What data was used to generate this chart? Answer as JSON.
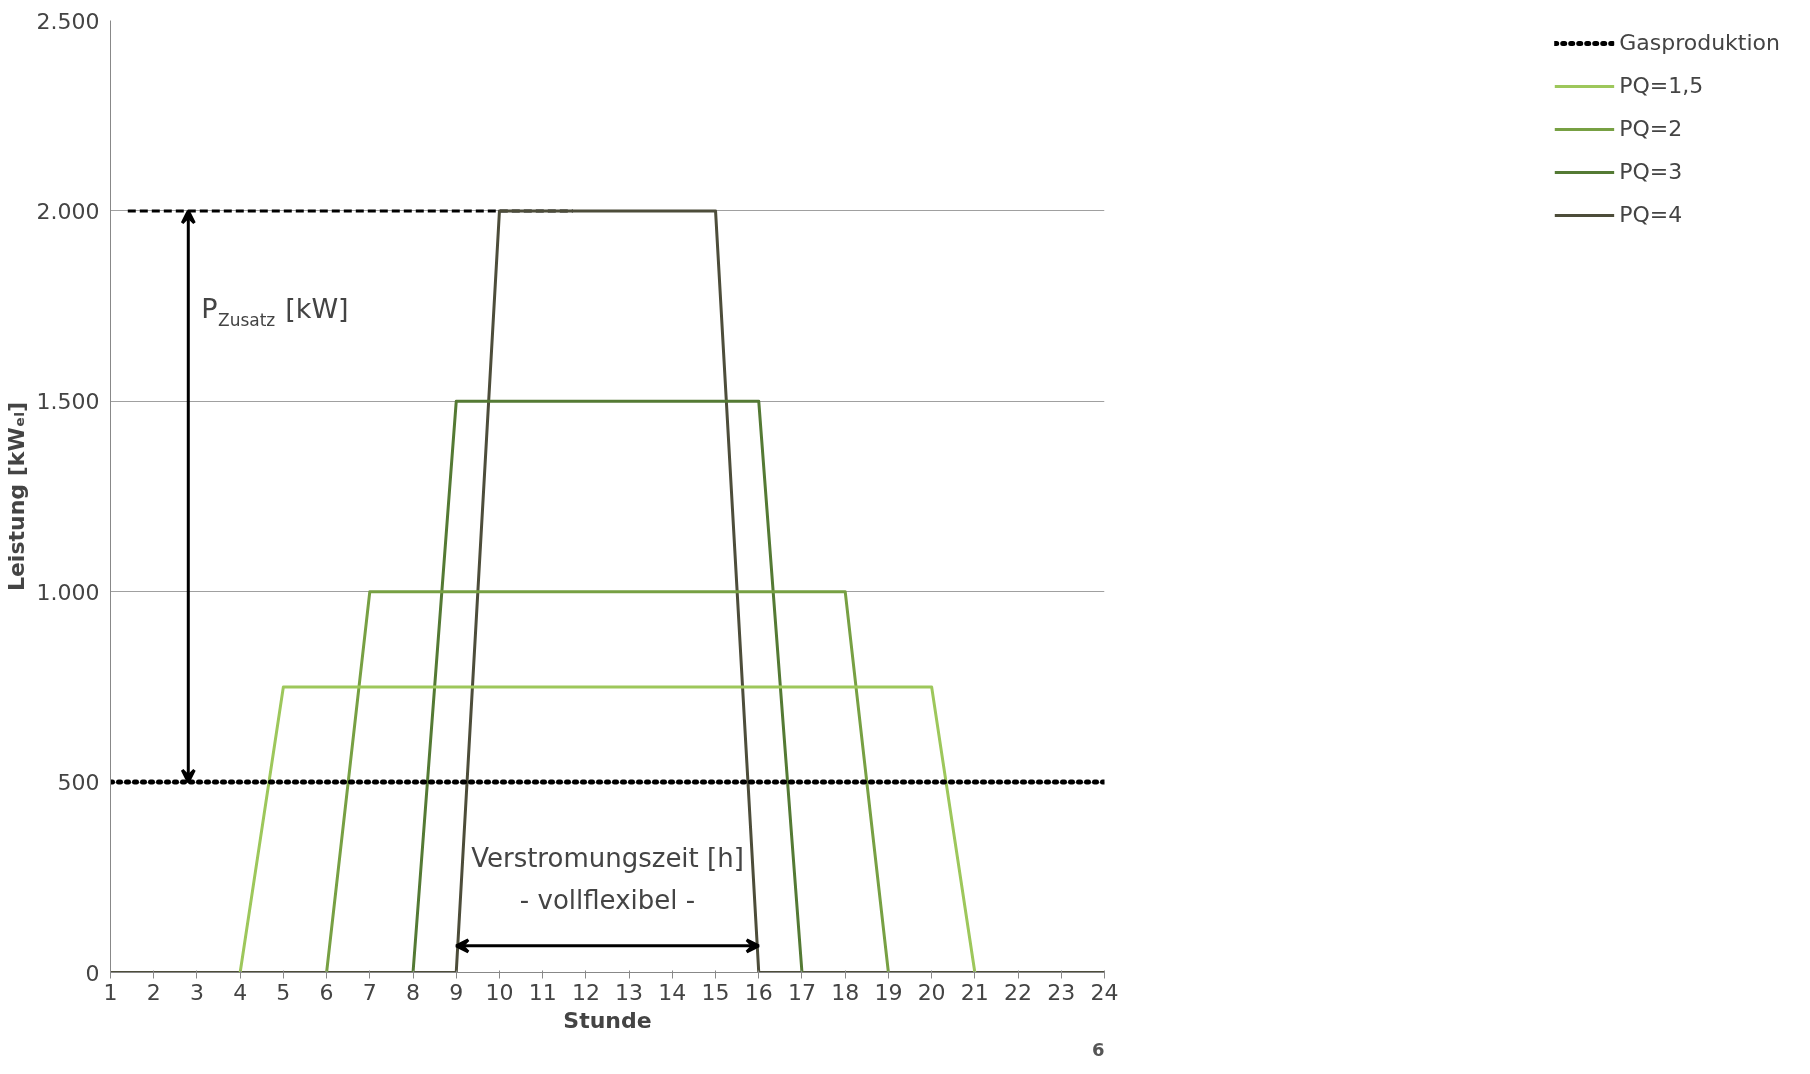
{
  "chart_data": {
    "type": "line",
    "xlabel": "Stunde",
    "ylabel": "Leistung [kWₑₗ]",
    "x": [
      1,
      2,
      3,
      4,
      5,
      6,
      7,
      8,
      9,
      10,
      11,
      12,
      13,
      14,
      15,
      16,
      17,
      18,
      19,
      20,
      21,
      22,
      23,
      24
    ],
    "xlim": [
      1,
      24
    ],
    "xticks": [
      1,
      2,
      3,
      4,
      5,
      6,
      7,
      8,
      9,
      10,
      11,
      12,
      13,
      14,
      15,
      16,
      17,
      18,
      19,
      20,
      21,
      22,
      23,
      24
    ],
    "ylim": [
      0,
      2500
    ],
    "yticks": [
      {
        "value": 0,
        "label": "0"
      },
      {
        "value": 500,
        "label": "500"
      },
      {
        "value": 1000,
        "label": "1.000"
      },
      {
        "value": 1500,
        "label": "1.500"
      },
      {
        "value": 2000,
        "label": "2.000"
      },
      {
        "value": 2500,
        "label": "2.500"
      }
    ],
    "grid": "y",
    "legend": "right",
    "series": [
      {
        "name": "Gasproduktion",
        "color": "#000000",
        "line_style": "dotted",
        "values": [
          500,
          500,
          500,
          500,
          500,
          500,
          500,
          500,
          500,
          500,
          500,
          500,
          500,
          500,
          500,
          500,
          500,
          500,
          500,
          500,
          500,
          500,
          500,
          500
        ]
      },
      {
        "name": "PQ=1,5",
        "color": "#9dc75b",
        "values": [
          null,
          null,
          null,
          0,
          750,
          750,
          750,
          750,
          750,
          750,
          750,
          750,
          750,
          750,
          750,
          750,
          750,
          750,
          750,
          750,
          0,
          null,
          null,
          null
        ]
      },
      {
        "name": "PQ=2",
        "color": "#77a043",
        "values": [
          null,
          null,
          null,
          null,
          null,
          0,
          1000,
          1000,
          1000,
          1000,
          1000,
          1000,
          1000,
          1000,
          1000,
          1000,
          1000,
          1000,
          0,
          null,
          null,
          null,
          null,
          null
        ]
      },
      {
        "name": "PQ=3",
        "color": "#547a34",
        "values": [
          null,
          null,
          null,
          null,
          null,
          null,
          null,
          0,
          1500,
          1500,
          1500,
          1500,
          1500,
          1500,
          1500,
          1500,
          0,
          null,
          null,
          null,
          null,
          null,
          null,
          null
        ]
      },
      {
        "name": "PQ=4",
        "color": "#4d4d3a",
        "values": [
          0,
          0,
          0,
          0,
          0,
          0,
          0,
          0,
          0,
          2000,
          2000,
          2000,
          2000,
          2000,
          2000,
          0,
          0,
          0,
          0,
          0,
          0,
          0,
          0,
          0
        ]
      },
      {
        "color": "#000000",
        "line_style": "dashed",
        "x": [
          1.4,
          11.7
        ],
        "values": [
          2000,
          2000
        ]
      }
    ],
    "annotations": [
      "P$_{Zusatz}$ [kW]",
      "Verstromungszeit [h]\n- vollflexibel -",
      "6"
    ]
  }
}
